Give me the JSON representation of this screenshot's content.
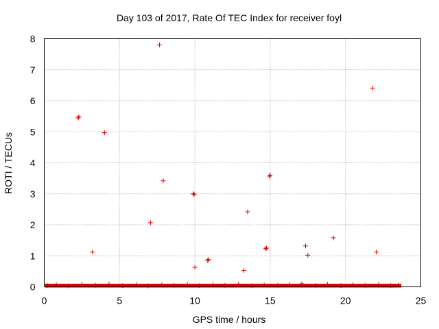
{
  "chart_data": {
    "type": "scatter",
    "title": "Day 103 of 2017, Rate Of TEC Index for receiver foyl",
    "xlabel": "GPS time / hours",
    "ylabel": "ROTI / TECUs",
    "xlim": [
      0,
      25
    ],
    "ylim": [
      0,
      8
    ],
    "xticks": [
      "0",
      "5",
      "10",
      "15",
      "20",
      "25"
    ],
    "yticks": [
      "0",
      "1",
      "2",
      "3",
      "4",
      "5",
      "6",
      "7",
      "8"
    ],
    "grid": true,
    "marker": "plus",
    "color": "#e00000",
    "baseline_band": {
      "x_start": 0.05,
      "x_end": 23.7,
      "y_min": 0.0,
      "y_max": 0.1,
      "description_values_near_zero": true
    },
    "series": [
      {
        "name": "ROTI",
        "points": [
          [
            2.25,
            5.45
          ],
          [
            2.3,
            5.48
          ],
          [
            4.0,
            4.97
          ],
          [
            7.65,
            7.8
          ],
          [
            7.9,
            3.42
          ],
          [
            7.05,
            2.07
          ],
          [
            3.2,
            1.12
          ],
          [
            9.9,
            3.0
          ],
          [
            9.95,
            2.98
          ],
          [
            10.0,
            0.63
          ],
          [
            10.85,
            0.85
          ],
          [
            10.9,
            0.88
          ],
          [
            13.25,
            0.53
          ],
          [
            13.5,
            2.42
          ],
          [
            14.7,
            1.23
          ],
          [
            14.75,
            1.25
          ],
          [
            14.95,
            3.57
          ],
          [
            15.0,
            3.6
          ],
          [
            17.35,
            1.32
          ],
          [
            17.5,
            1.02
          ],
          [
            19.2,
            1.58
          ],
          [
            21.8,
            6.4
          ],
          [
            22.05,
            1.12
          ],
          [
            0.2,
            0.04
          ],
          [
            0.8,
            0.06
          ],
          [
            1.6,
            0.03
          ],
          [
            2.5,
            0.08
          ],
          [
            3.4,
            0.05
          ],
          [
            4.3,
            0.09
          ],
          [
            5.2,
            0.04
          ],
          [
            6.1,
            0.07
          ],
          [
            6.9,
            0.03
          ],
          [
            7.8,
            0.06
          ],
          [
            8.6,
            0.05
          ],
          [
            9.5,
            0.08
          ],
          [
            10.3,
            0.04
          ],
          [
            11.2,
            0.07
          ],
          [
            12.0,
            0.05
          ],
          [
            12.9,
            0.09
          ],
          [
            13.8,
            0.04
          ],
          [
            14.6,
            0.06
          ],
          [
            15.5,
            0.05
          ],
          [
            16.3,
            0.07
          ],
          [
            17.1,
            0.1
          ],
          [
            18.0,
            0.05
          ],
          [
            18.8,
            0.08
          ],
          [
            19.7,
            0.04
          ],
          [
            20.5,
            0.07
          ],
          [
            21.3,
            0.05
          ],
          [
            22.2,
            0.08
          ],
          [
            23.0,
            0.04
          ],
          [
            23.5,
            0.06
          ]
        ]
      }
    ]
  }
}
